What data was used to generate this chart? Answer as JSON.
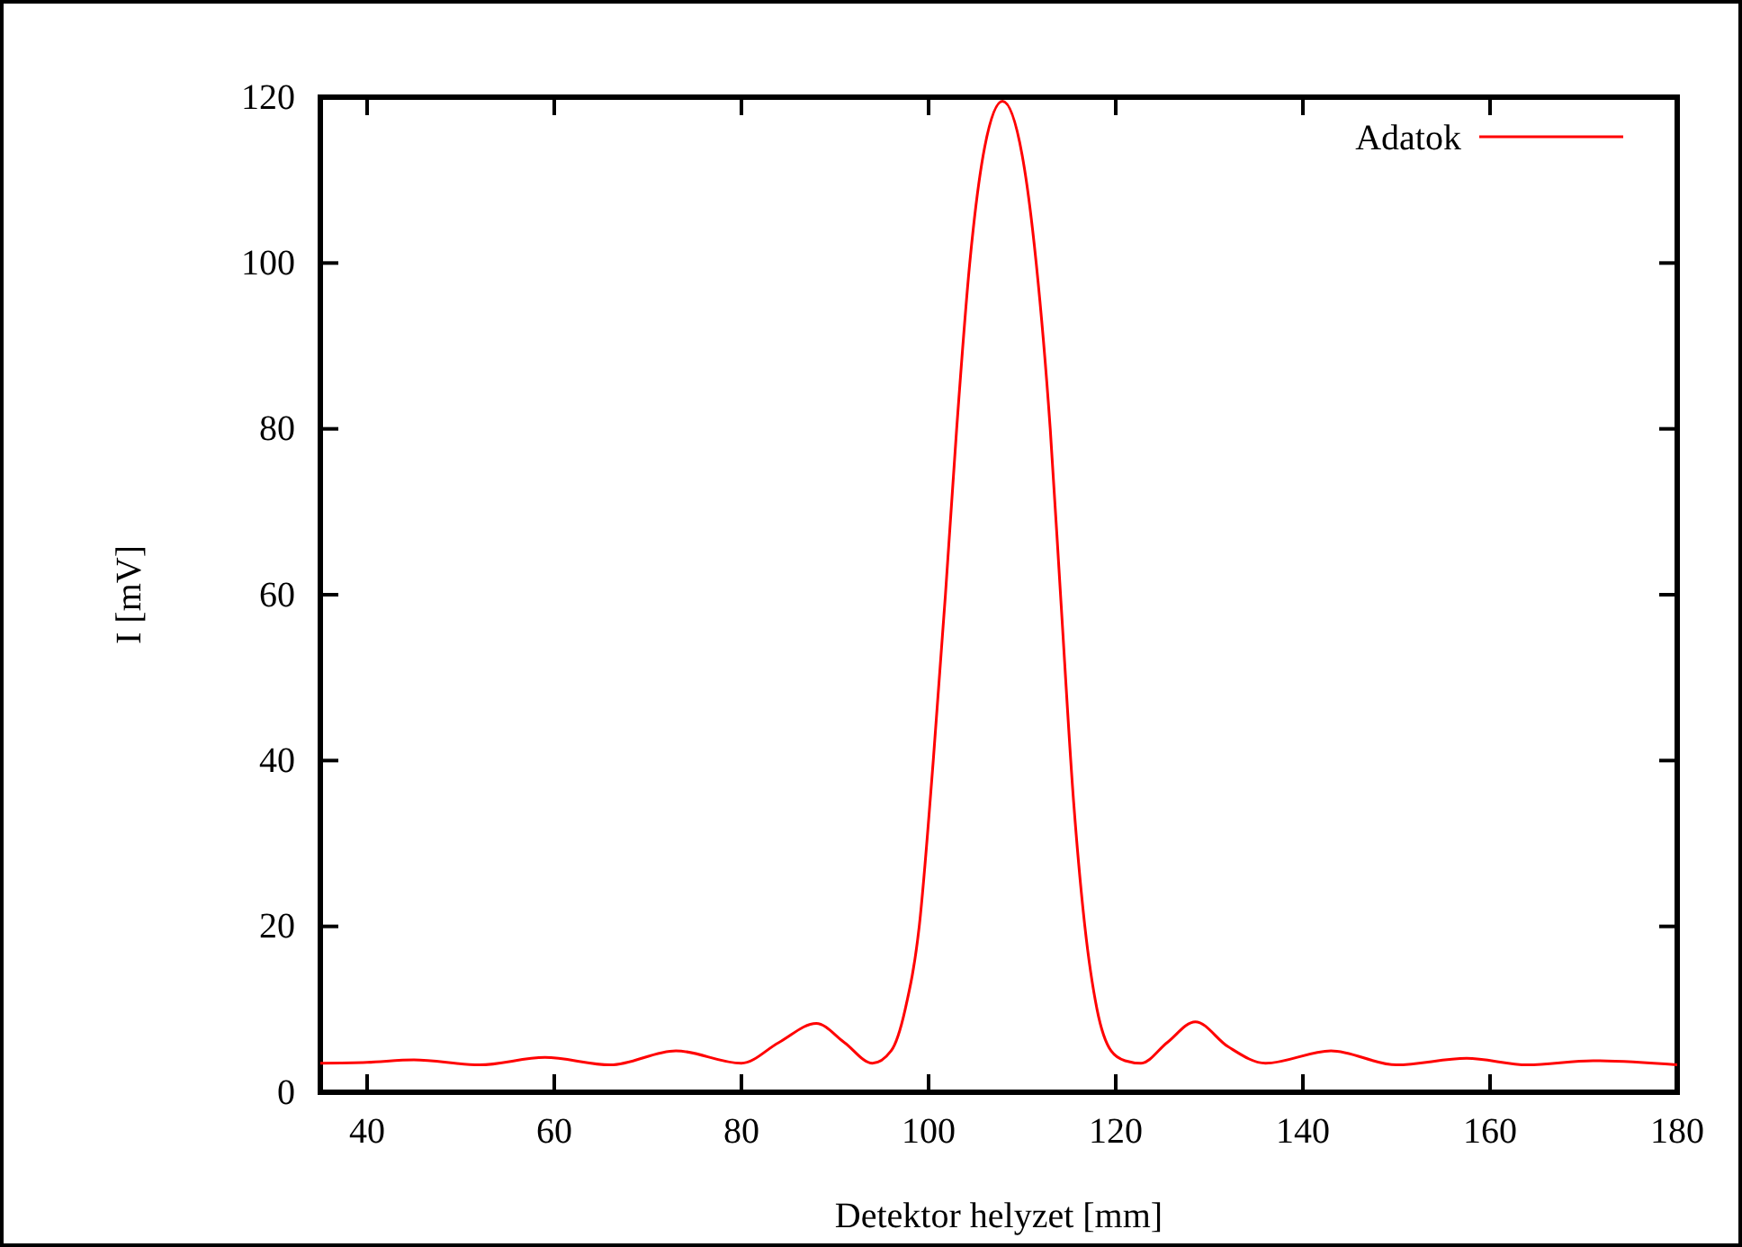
{
  "chart_data": {
    "type": "line",
    "xlabel": "Detektor helyzet [mm]",
    "ylabel": "I [mV]",
    "xlim": [
      35,
      180
    ],
    "xticks": [
      40,
      60,
      80,
      100,
      120,
      140,
      160,
      180
    ],
    "ylim": [
      0,
      120
    ],
    "yticks": [
      0,
      20,
      40,
      60,
      80,
      100,
      120
    ],
    "grid": false,
    "legend": "top right",
    "series": [
      {
        "name": "Adatok",
        "color": "#ff0000",
        "x": [
          35,
          40,
          45,
          52,
          59,
          66,
          73,
          80,
          84,
          88,
          91,
          94,
          96,
          97.5,
          99,
          100.5,
          101.8,
          103,
          104.4,
          106,
          107.9,
          110,
          111.5,
          113,
          114.1,
          115.5,
          116.7,
          118,
          119.5,
          121,
          122.7,
          125.5,
          128.5,
          132,
          136,
          143,
          150,
          157.5,
          164,
          171,
          180
        ],
        "values": [
          3.5,
          3.6,
          3.9,
          3.3,
          4.2,
          3.3,
          5,
          3.5,
          6,
          8.3,
          6,
          3.5,
          5,
          10,
          20,
          40,
          60,
          80,
          100,
          114,
          119.5,
          113,
          100,
          80,
          60,
          35,
          20,
          10,
          5,
          3.8,
          3.5,
          6,
          8.5,
          5.5,
          3.5,
          5,
          3.3,
          4.1,
          3.3,
          3.8,
          3.3
        ]
      }
    ]
  }
}
